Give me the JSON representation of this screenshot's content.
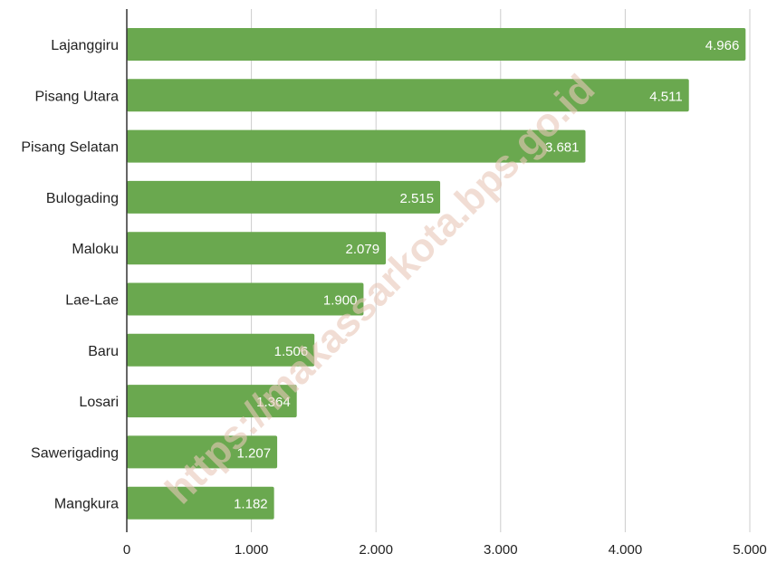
{
  "chart_data": {
    "type": "bar",
    "orientation": "horizontal",
    "categories": [
      "Lajanggiru",
      "Pisang Utara",
      "Pisang Selatan",
      "Bulogading",
      "Maloku",
      "Lae-Lae",
      "Baru",
      "Losari",
      "Sawerigading",
      "Mangkura"
    ],
    "values": [
      4966,
      4511,
      3681,
      2515,
      2079,
      1900,
      1506,
      1364,
      1207,
      1182
    ],
    "value_labels": [
      "4.966",
      "4.511",
      "3.681",
      "2.515",
      "2.079",
      "1.900",
      "1.506",
      "1.364",
      "1.207",
      "1.182"
    ],
    "x_ticks": [
      0,
      1000,
      2000,
      3000,
      4000,
      5000
    ],
    "x_tick_labels": [
      "0",
      "1.000",
      "2.000",
      "3.000",
      "4.000",
      "5.000"
    ],
    "xlim": [
      0,
      5000
    ],
    "grid": true,
    "title": "",
    "xlabel": "",
    "ylabel": "",
    "bar_color": "#6aa84f",
    "grid_color": "#cccccc",
    "axis_color": "#333333",
    "watermark": "https://makassarkota.bps.go.id"
  }
}
